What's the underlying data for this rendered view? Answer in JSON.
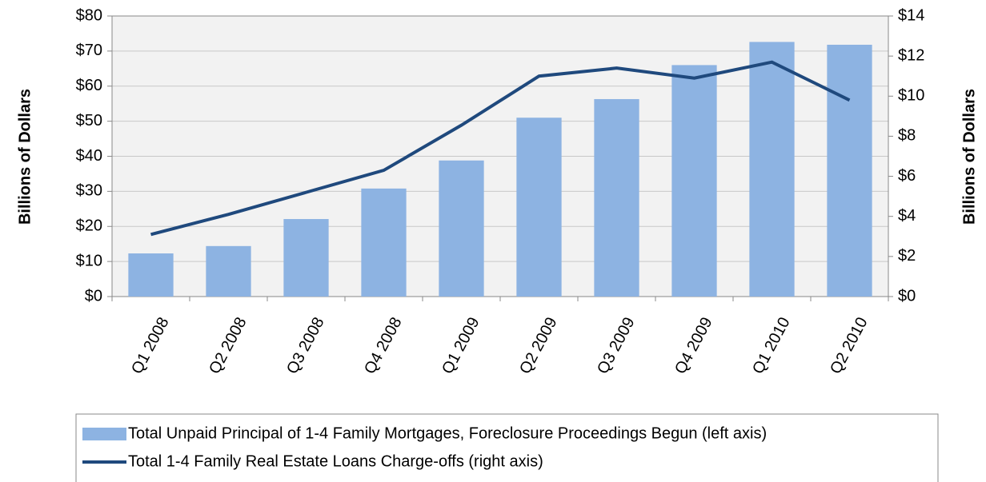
{
  "chart_data": {
    "type": "bar",
    "categories": [
      "Q1 2008",
      "Q2 2008",
      "Q3 2008",
      "Q4 2008",
      "Q1 2009",
      "Q2 2009",
      "Q3 2009",
      "Q4 2009",
      "Q1 2010",
      "Q2 2010"
    ],
    "series": [
      {
        "name": "Total Unpaid Principal of 1-4 Family Mortgages, Foreclosure Proceedings Begun (left axis)",
        "type": "bar",
        "color": "#8db3e2",
        "values": [
          12.3,
          14.4,
          22.1,
          30.8,
          38.8,
          51.0,
          56.3,
          66.0,
          72.6,
          71.8
        ]
      },
      {
        "name": "Total 1-4 Family Real Estate Loans Charge-offs (right axis)",
        "type": "line",
        "axis": "y2",
        "color": "#1f497d",
        "values": [
          3.1,
          4.1,
          5.2,
          6.3,
          8.55,
          11.0,
          11.4,
          10.9,
          11.7,
          9.8
        ]
      }
    ],
    "ylabel": "Billions of Dollars",
    "y2label": "Billions of Dollars",
    "ylim": [
      0,
      80
    ],
    "yticks": [
      {
        "value": 0,
        "label": "$0"
      },
      {
        "value": 10,
        "label": "$10"
      },
      {
        "value": 20,
        "label": "$20"
      },
      {
        "value": 30,
        "label": "$30"
      },
      {
        "value": 40,
        "label": "$40"
      },
      {
        "value": 50,
        "label": "$50"
      },
      {
        "value": 60,
        "label": "$60"
      },
      {
        "value": 70,
        "label": "$70"
      },
      {
        "value": 80,
        "label": "$80"
      }
    ],
    "y2lim": [
      0,
      14
    ],
    "y2ticks": [
      {
        "value": 0,
        "label": "$0"
      },
      {
        "value": 2,
        "label": "$2"
      },
      {
        "value": 4,
        "label": "$4"
      },
      {
        "value": 6,
        "label": "$6"
      },
      {
        "value": 8,
        "label": "$8"
      },
      {
        "value": 10,
        "label": "$10"
      },
      {
        "value": 12,
        "label": "$12"
      },
      {
        "value": 14,
        "label": "$14"
      }
    ],
    "grid": true,
    "legend": "bottom"
  }
}
